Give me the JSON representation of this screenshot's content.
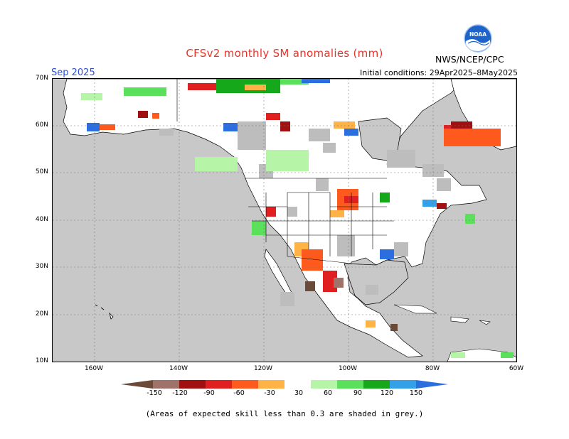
{
  "title": "CFSv2 monthly SM anomalies (mm)",
  "period": "Sep 2025",
  "initial_conditions": "Initial conditions: 29Apr2025–8May2025",
  "agency": "NWS/NCEP/CPC",
  "logo_text": "NOAA",
  "lat_labels": [
    "70N",
    "60N",
    "50N",
    "40N",
    "30N",
    "20N",
    "10N"
  ],
  "lon_labels": [
    "160W",
    "140W",
    "120W",
    "100W",
    "80W",
    "60W"
  ],
  "colorbar": {
    "labels": [
      "-150",
      "-120",
      "-90",
      "-60",
      "-30",
      "30",
      "60",
      "90",
      "120",
      "150"
    ],
    "colors": [
      "#6b4a3a",
      "#a0736a",
      "#a01010",
      "#e02020",
      "#ff5a1e",
      "#ffb347",
      "#ffffff",
      "#b6f5a8",
      "#5ae05a",
      "#15a81a",
      "#33a0e8",
      "#2a6ee0"
    ]
  },
  "footnote": "(Areas of expected skill less than 0.3 are shaded in grey.)",
  "palette": {
    "ocean": "#c8c8c8",
    "land": "#ffffff",
    "grey": "#bdbdbd",
    "border": "#000000",
    "title": "#e8332a",
    "period": "#2b4fd1"
  }
}
